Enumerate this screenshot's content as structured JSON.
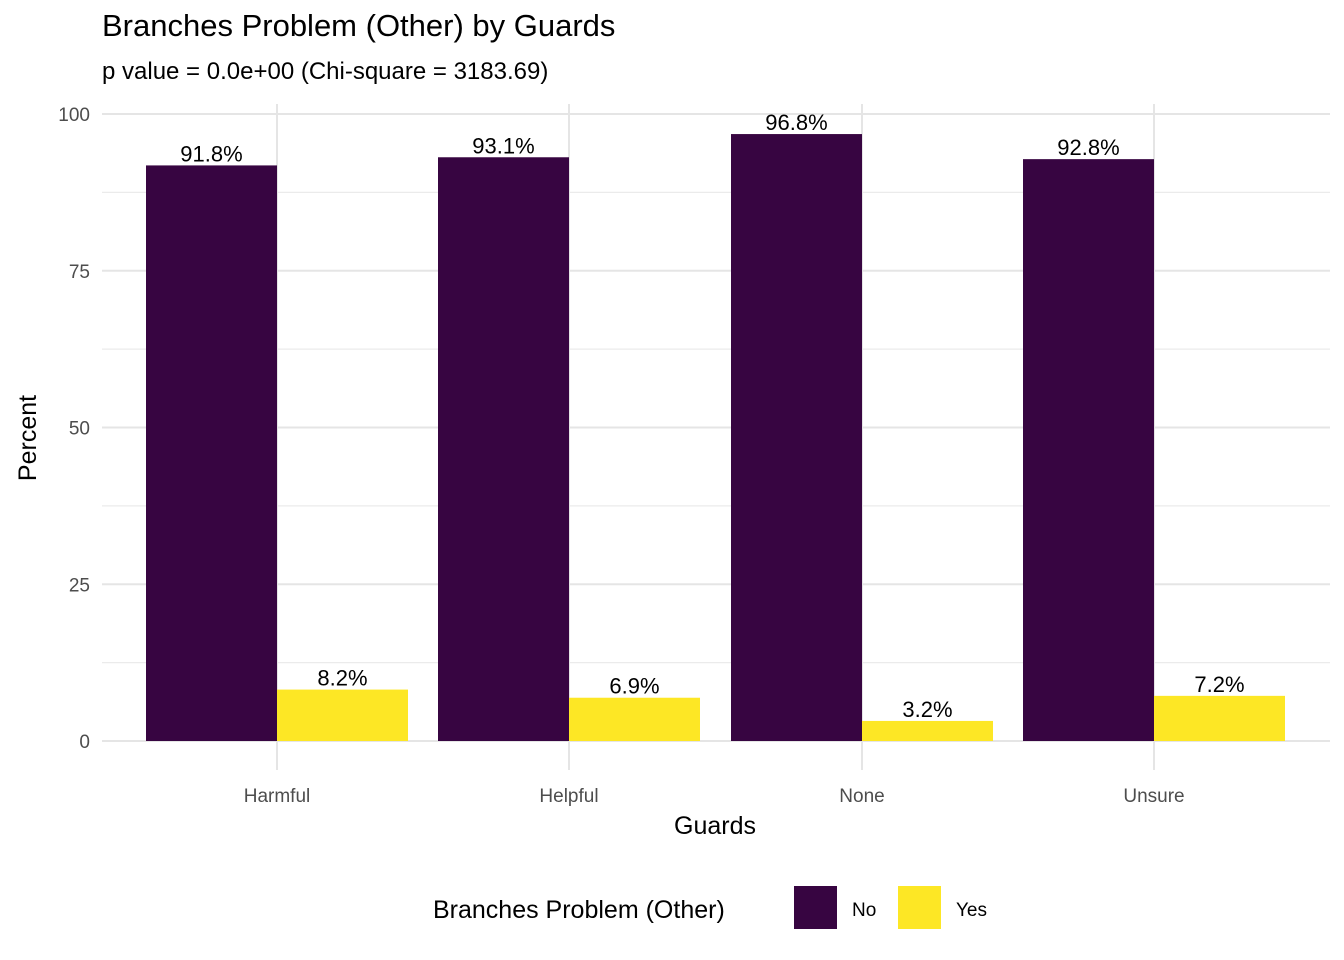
{
  "chart_data": {
    "type": "bar",
    "title": "Branches Problem (Other) by Guards",
    "subtitle": "p value = 0.0e+00 (Chi-square = 3183.69)",
    "xlabel": "Guards",
    "ylabel": "Percent",
    "categories": [
      "Harmful",
      "Helpful",
      "None",
      "Unsure"
    ],
    "series": [
      {
        "name": "No",
        "color": "#370541",
        "values": [
          91.8,
          93.1,
          96.8,
          92.8
        ],
        "labels": [
          "91.8%",
          "93.1%",
          "96.8%",
          "92.8%"
        ]
      },
      {
        "name": "Yes",
        "color": "#FDE725",
        "values": [
          8.2,
          6.9,
          3.2,
          7.2
        ],
        "labels": [
          "8.2%",
          "6.9%",
          "3.2%",
          "7.2%"
        ]
      }
    ],
    "ylim": [
      0,
      100
    ],
    "yticks": [
      0,
      25,
      50,
      75,
      100
    ],
    "grid": true,
    "legend": {
      "title": "Branches Problem (Other)",
      "position": "bottom"
    }
  }
}
